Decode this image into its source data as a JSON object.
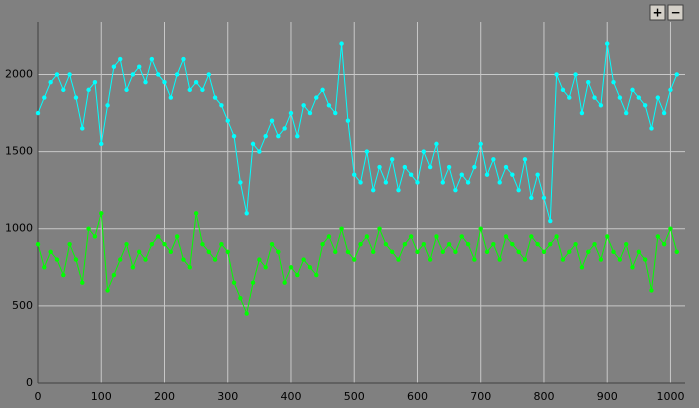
{
  "buttons": [
    "+",
    "−"
  ],
  "chart_data": {
    "type": "line",
    "x": [
      0,
      10,
      20,
      30,
      40,
      50,
      60,
      70,
      80,
      90,
      100,
      110,
      120,
      130,
      140,
      150,
      160,
      170,
      180,
      190,
      200,
      210,
      220,
      230,
      240,
      250,
      260,
      270,
      280,
      290,
      300,
      310,
      320,
      330,
      340,
      350,
      360,
      370,
      380,
      390,
      400,
      410,
      420,
      430,
      440,
      450,
      460,
      470,
      480,
      490,
      500,
      510,
      520,
      530,
      540,
      550,
      560,
      570,
      580,
      590,
      600,
      610,
      620,
      630,
      640,
      650,
      660,
      670,
      680,
      690,
      700,
      710,
      720,
      730,
      740,
      750,
      760,
      770,
      780,
      790,
      800,
      810,
      820,
      830,
      840,
      850,
      860,
      870,
      880,
      890,
      900,
      910,
      920,
      930,
      940,
      950,
      960,
      970,
      980,
      990,
      1000,
      1010
    ],
    "series": [
      {
        "color": "#00ffff",
        "values": [
          1750,
          1850,
          1950,
          2000,
          1900,
          2000,
          1850,
          1650,
          1900,
          1950,
          1550,
          1800,
          2050,
          2100,
          1900,
          2000,
          2050,
          1950,
          2100,
          2000,
          1950,
          1850,
          2000,
          2100,
          1900,
          1950,
          1900,
          2000,
          1850,
          1800,
          1700,
          1600,
          1300,
          1100,
          1550,
          1500,
          1600,
          1700,
          1600,
          1650,
          1750,
          1600,
          1800,
          1750,
          1850,
          1900,
          1800,
          1750,
          2200,
          1700,
          1350,
          1300,
          1500,
          1250,
          1400,
          1300,
          1450,
          1250,
          1400,
          1350,
          1300,
          1500,
          1400,
          1550,
          1300,
          1400,
          1250,
          1350,
          1300,
          1400,
          1550,
          1350,
          1450,
          1300,
          1400,
          1350,
          1250,
          1450,
          1200,
          1350,
          1200,
          1050,
          2000,
          1900,
          1850,
          2000,
          1750,
          1950,
          1850,
          1800,
          2200,
          1950,
          1850,
          1750,
          1900,
          1850,
          1800,
          1650,
          1850,
          1750,
          1900,
          2000
        ]
      },
      {
        "color": "#00ff00",
        "values": [
          900,
          750,
          850,
          800,
          700,
          900,
          800,
          650,
          1000,
          950,
          1100,
          600,
          700,
          800,
          900,
          750,
          850,
          800,
          900,
          950,
          900,
          850,
          950,
          800,
          750,
          1100,
          900,
          850,
          800,
          900,
          850,
          650,
          550,
          450,
          650,
          800,
          750,
          900,
          850,
          650,
          750,
          700,
          800,
          750,
          700,
          900,
          950,
          850,
          1000,
          850,
          800,
          900,
          950,
          850,
          1000,
          900,
          850,
          800,
          900,
          950,
          850,
          900,
          800,
          950,
          850,
          900,
          850,
          950,
          900,
          800,
          1000,
          850,
          900,
          800,
          950,
          900,
          850,
          800,
          950,
          900,
          850,
          900,
          950,
          800,
          850,
          900,
          750,
          850,
          900,
          800,
          950,
          850,
          800,
          900,
          750,
          850,
          800,
          600,
          950,
          900,
          1000,
          850
        ]
      }
    ],
    "xlim": [
      0,
      1023
    ],
    "ylim": [
      0,
      2340
    ],
    "xticks": [
      0,
      100,
      200,
      300,
      400,
      500,
      600,
      700,
      800,
      900,
      1000
    ],
    "yticks": [
      0,
      500,
      1000,
      1500,
      2000
    ],
    "grid": true
  }
}
